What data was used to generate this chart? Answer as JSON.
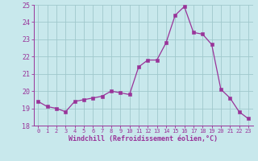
{
  "x": [
    0,
    1,
    2,
    3,
    4,
    5,
    6,
    7,
    8,
    9,
    10,
    11,
    12,
    13,
    14,
    15,
    16,
    17,
    18,
    19,
    20,
    21,
    22,
    23
  ],
  "y": [
    19.4,
    19.1,
    19.0,
    18.8,
    19.4,
    19.5,
    19.6,
    19.7,
    20.0,
    19.9,
    19.8,
    21.4,
    21.8,
    21.8,
    22.8,
    24.4,
    24.9,
    23.4,
    23.3,
    22.7,
    20.1,
    19.6,
    18.8,
    18.4
  ],
  "line_color": "#993399",
  "marker_color": "#993399",
  "bg_color": "#c8e8ec",
  "grid_color": "#a0c8cc",
  "xlabel": "Windchill (Refroidissement éolien,°C)",
  "ylim": [
    18,
    25
  ],
  "xlim": [
    -0.5,
    23.5
  ],
  "yticks": [
    18,
    19,
    20,
    21,
    22,
    23,
    24,
    25
  ],
  "xticks": [
    0,
    1,
    2,
    3,
    4,
    5,
    6,
    7,
    8,
    9,
    10,
    11,
    12,
    13,
    14,
    15,
    16,
    17,
    18,
    19,
    20,
    21,
    22,
    23
  ],
  "tick_color": "#993399",
  "label_color": "#993399",
  "axis_color": "#993399",
  "font_family": "monospace"
}
